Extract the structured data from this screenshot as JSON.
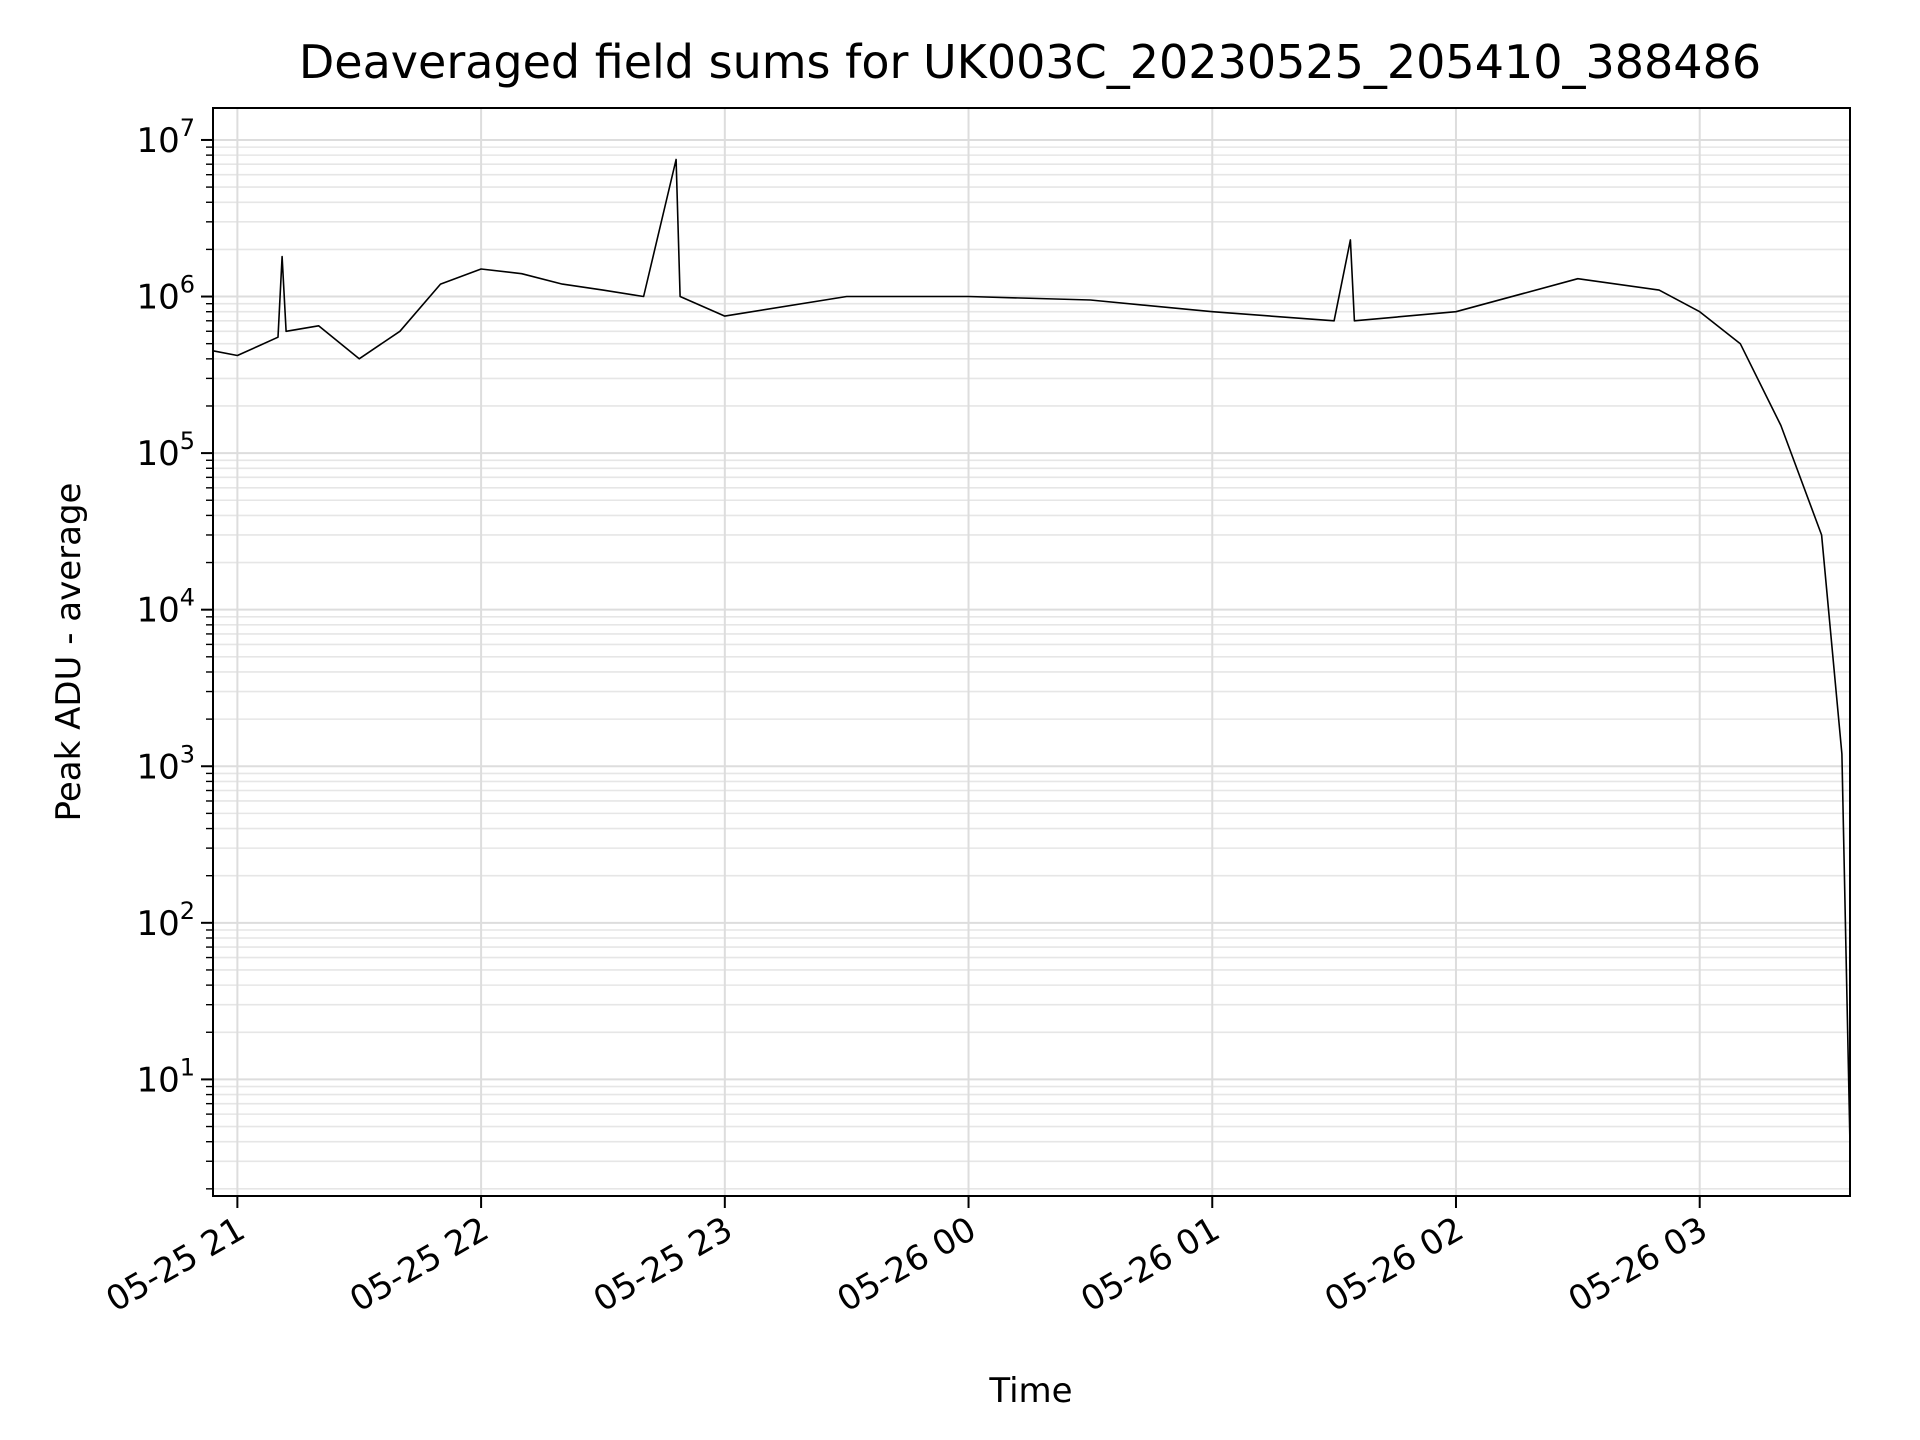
{
  "chart_data": {
    "type": "line",
    "title": "Deaveraged field sums for UK003C_20230525_205410_388486",
    "xlabel": "Time",
    "ylabel": "Peak ADU - average",
    "yscale": "log",
    "ylim": [
      1.8,
      16000000
    ],
    "xlim": [
      "2023-05-25 20:54",
      "2023-05-26 03:37"
    ],
    "grid": true,
    "line_color": "#000000",
    "x_ticks": [
      {
        "t": "2023-05-25 21:00",
        "label": "05-25 21"
      },
      {
        "t": "2023-05-25 22:00",
        "label": "05-25 22"
      },
      {
        "t": "2023-05-25 23:00",
        "label": "05-25 23"
      },
      {
        "t": "2023-05-26 00:00",
        "label": "05-26 00"
      },
      {
        "t": "2023-05-26 01:00",
        "label": "05-26 01"
      },
      {
        "t": "2023-05-26 02:00",
        "label": "05-26 02"
      },
      {
        "t": "2023-05-26 03:00",
        "label": "05-26 03"
      }
    ],
    "y_ticks": [
      {
        "value": 10,
        "base": "10",
        "exp": "1"
      },
      {
        "value": 100,
        "base": "10",
        "exp": "2"
      },
      {
        "value": 1000,
        "base": "10",
        "exp": "3"
      },
      {
        "value": 10000,
        "base": "10",
        "exp": "4"
      },
      {
        "value": 100000,
        "base": "10",
        "exp": "5"
      },
      {
        "value": 1000000,
        "base": "10",
        "exp": "6"
      },
      {
        "value": 10000000,
        "base": "10",
        "exp": "7"
      }
    ],
    "series": [
      {
        "points": [
          [
            "2023-05-25 20:54",
            450000
          ],
          [
            "2023-05-25 21:00",
            420000
          ],
          [
            "2023-05-25 21:05",
            480000
          ],
          [
            "2023-05-25 21:10",
            550000
          ],
          [
            "2023-05-25 21:11",
            1800000
          ],
          [
            "2023-05-25 21:12",
            600000
          ],
          [
            "2023-05-25 21:20",
            650000
          ],
          [
            "2023-05-25 21:30",
            400000
          ],
          [
            "2023-05-25 21:40",
            600000
          ],
          [
            "2023-05-25 21:50",
            1200000
          ],
          [
            "2023-05-25 22:00",
            1500000
          ],
          [
            "2023-05-25 22:10",
            1400000
          ],
          [
            "2023-05-25 22:20",
            1200000
          ],
          [
            "2023-05-25 22:30",
            1100000
          ],
          [
            "2023-05-25 22:40",
            1000000
          ],
          [
            "2023-05-25 22:48",
            7500000
          ],
          [
            "2023-05-25 22:49",
            1000000
          ],
          [
            "2023-05-25 23:00",
            750000
          ],
          [
            "2023-05-25 23:30",
            1000000
          ],
          [
            "2023-05-26 00:00",
            1000000
          ],
          [
            "2023-05-26 00:30",
            950000
          ],
          [
            "2023-05-26 01:00",
            800000
          ],
          [
            "2023-05-26 01:30",
            700000
          ],
          [
            "2023-05-26 01:34",
            2300000
          ],
          [
            "2023-05-26 01:35",
            700000
          ],
          [
            "2023-05-26 02:00",
            800000
          ],
          [
            "2023-05-26 02:30",
            1300000
          ],
          [
            "2023-05-26 02:50",
            1100000
          ],
          [
            "2023-05-26 03:00",
            800000
          ],
          [
            "2023-05-26 03:10",
            500000
          ],
          [
            "2023-05-26 03:20",
            150000
          ],
          [
            "2023-05-26 03:30",
            30000
          ],
          [
            "2023-05-26 03:35",
            1200
          ],
          [
            "2023-05-26 03:37",
            3.8
          ]
        ]
      }
    ]
  }
}
